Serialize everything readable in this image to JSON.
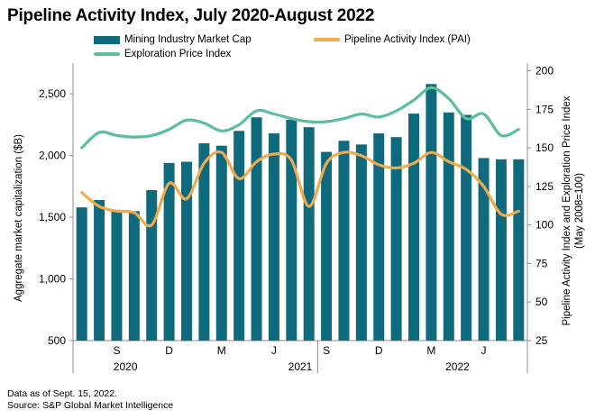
{
  "colors": {
    "bars": "#0f6a7d",
    "pai": "#f0a94b",
    "exploration": "#5bbf9c",
    "axis": "#8c8c8c"
  },
  "legend": {
    "bars": "Mining Industry Market Cap",
    "pai": "Pipeline Activity Index (PAI)",
    "exploration": "Exploration Price Index"
  },
  "footnotes": {
    "line1": "Data as of Sept. 15, 2022.",
    "line2": "Source: S&P Global Market Intelligence"
  },
  "chart_data": {
    "type": "bar",
    "title": "Pipeline Activity Index, July 2020-August 2022",
    "xlabel": "",
    "ylabel": "Aggregate market capitalization ($B)",
    "y2label": "Pipeline Activity Index and Exploration Price Index",
    "y2label_sub": "(May 2008=100)",
    "ylim": [
      500,
      2750
    ],
    "y2lim": [
      25,
      205
    ],
    "yticks": [
      500,
      1000,
      1500,
      2000,
      2500
    ],
    "ytick_labels": [
      "500",
      "1,000",
      "1,500",
      "2,000",
      "2,500"
    ],
    "y2ticks": [
      25,
      50,
      75,
      100,
      125,
      150,
      175,
      200
    ],
    "y2tick_labels": [
      "25",
      "50",
      "75",
      "100",
      "125",
      "150",
      "175",
      "200"
    ],
    "categories": [
      "Jul 2020",
      "Aug 2020",
      "Sep 2020",
      "Oct 2020",
      "Nov 2020",
      "Dec 2020",
      "Jan 2021",
      "Feb 2021",
      "Mar 2021",
      "Apr 2021",
      "May 2021",
      "Jun 2021",
      "Jul 2021",
      "Aug 2021",
      "Sep 2021",
      "Oct 2021",
      "Nov 2021",
      "Dec 2021",
      "Jan 2022",
      "Feb 2022",
      "Mar 2022",
      "Apr 2022",
      "May 2022",
      "Jun 2022",
      "Jul 2022",
      "Aug 2022"
    ],
    "month_labels": [
      {
        "index": 2,
        "label": "S"
      },
      {
        "index": 5,
        "label": "D"
      },
      {
        "index": 8,
        "label": "M"
      },
      {
        "index": 11,
        "label": "J"
      },
      {
        "index": 14,
        "label": "S"
      },
      {
        "index": 17,
        "label": "D"
      },
      {
        "index": 20,
        "label": "M"
      },
      {
        "index": 23,
        "label": "J"
      }
    ],
    "year_labels": [
      {
        "year": "2020",
        "center_index": 2.5
      },
      {
        "year": "2021",
        "center_index": 12.5
      },
      {
        "year": "2022",
        "center_index": 21.5
      }
    ],
    "year_separators": [
      13.5
    ],
    "series": [
      {
        "name": "Mining Industry Market Cap",
        "type": "bar",
        "axis": "left",
        "values": [
          1580,
          1640,
          1560,
          1550,
          1720,
          1940,
          1950,
          2100,
          2080,
          2200,
          2310,
          2180,
          2290,
          2230,
          2030,
          2120,
          2090,
          2180,
          2150,
          2340,
          2580,
          2350,
          2330,
          1980,
          1970,
          1970
        ]
      },
      {
        "name": "Pipeline Activity Index (PAI)",
        "type": "line",
        "axis": "right",
        "values": [
          121,
          112,
          109,
          108,
          100,
          127,
          117,
          140,
          147,
          130,
          141,
          146,
          142,
          112,
          140,
          147,
          145,
          139,
          137,
          140,
          147,
          141,
          136,
          125,
          107,
          109
        ]
      },
      {
        "name": "Exploration Price Index",
        "type": "line",
        "axis": "right",
        "values": [
          150,
          160,
          158,
          157,
          158,
          162,
          168,
          166,
          161,
          165,
          174,
          172,
          169,
          167,
          167,
          169,
          172,
          170,
          174,
          181,
          189,
          182,
          169,
          172,
          158,
          162
        ]
      }
    ]
  }
}
